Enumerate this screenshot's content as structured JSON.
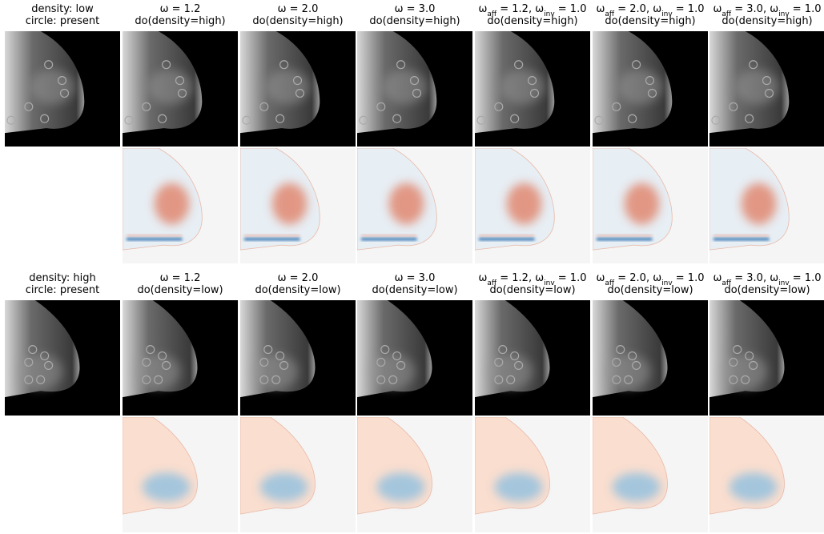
{
  "figure": {
    "blocks": [
      {
        "original": {
          "lines": [
            [
              {
                "text": "density: low"
              }
            ],
            [
              {
                "text": "circle: present"
              }
            ]
          ]
        },
        "interventions": [
          {
            "lines": [
              [
                {
                  "text": "ω = 1.2"
                }
              ],
              [
                {
                  "text": "do(density=high)"
                }
              ]
            ]
          },
          {
            "lines": [
              [
                {
                  "text": "ω = 2.0"
                }
              ],
              [
                {
                  "text": "do(density=high)"
                }
              ]
            ]
          },
          {
            "lines": [
              [
                {
                  "text": "ω = 3.0"
                }
              ],
              [
                {
                  "text": "do(density=high)"
                }
              ]
            ]
          },
          {
            "lines": [
              [
                {
                  "text": "ω"
                },
                {
                  "sub": "aff"
                },
                {
                  "text": " = 1.2, ω"
                },
                {
                  "sub": "inv"
                },
                {
                  "text": " = 1.0"
                }
              ],
              [
                {
                  "text": "do(density=high)"
                }
              ]
            ]
          },
          {
            "lines": [
              [
                {
                  "text": "ω"
                },
                {
                  "sub": "aff"
                },
                {
                  "text": " = 2.0, ω"
                },
                {
                  "sub": "inv"
                },
                {
                  "text": " = 1.0"
                }
              ],
              [
                {
                  "text": "do(density=high)"
                }
              ]
            ]
          },
          {
            "lines": [
              [
                {
                  "text": "ω"
                },
                {
                  "sub": "aff"
                },
                {
                  "text": " = 3.0, ω"
                },
                {
                  "sub": "inv"
                },
                {
                  "text": " = 1.0"
                }
              ],
              [
                {
                  "text": "do(density=high)"
                }
              ]
            ]
          }
        ]
      },
      {
        "original": {
          "lines": [
            [
              {
                "text": "density: high"
              }
            ],
            [
              {
                "text": "circle: present"
              }
            ]
          ]
        },
        "interventions": [
          {
            "lines": [
              [
                {
                  "text": "ω = 1.2"
                }
              ],
              [
                {
                  "text": "do(density=low)"
                }
              ]
            ]
          },
          {
            "lines": [
              [
                {
                  "text": "ω = 2.0"
                }
              ],
              [
                {
                  "text": "do(density=low)"
                }
              ]
            ]
          },
          {
            "lines": [
              [
                {
                  "text": "ω = 3.0"
                }
              ],
              [
                {
                  "text": "do(density=low)"
                }
              ]
            ]
          },
          {
            "lines": [
              [
                {
                  "text": "ω"
                },
                {
                  "sub": "aff"
                },
                {
                  "text": " = 1.2, ω"
                },
                {
                  "sub": "inv"
                },
                {
                  "text": " = 1.0"
                }
              ],
              [
                {
                  "text": "do(density=low)"
                }
              ]
            ]
          },
          {
            "lines": [
              [
                {
                  "text": "ω"
                },
                {
                  "sub": "aff"
                },
                {
                  "text": " = 2.0, ω"
                },
                {
                  "sub": "inv"
                },
                {
                  "text": " = 1.0"
                }
              ],
              [
                {
                  "text": "do(density=low)"
                }
              ]
            ]
          },
          {
            "lines": [
              [
                {
                  "text": "ω"
                },
                {
                  "sub": "aff"
                },
                {
                  "text": " = 3.0, ω"
                },
                {
                  "sub": "inv"
                },
                {
                  "text": " = 1.0"
                }
              ],
              [
                {
                  "text": "do(density=low)"
                }
              ]
            ]
          }
        ]
      }
    ]
  }
}
